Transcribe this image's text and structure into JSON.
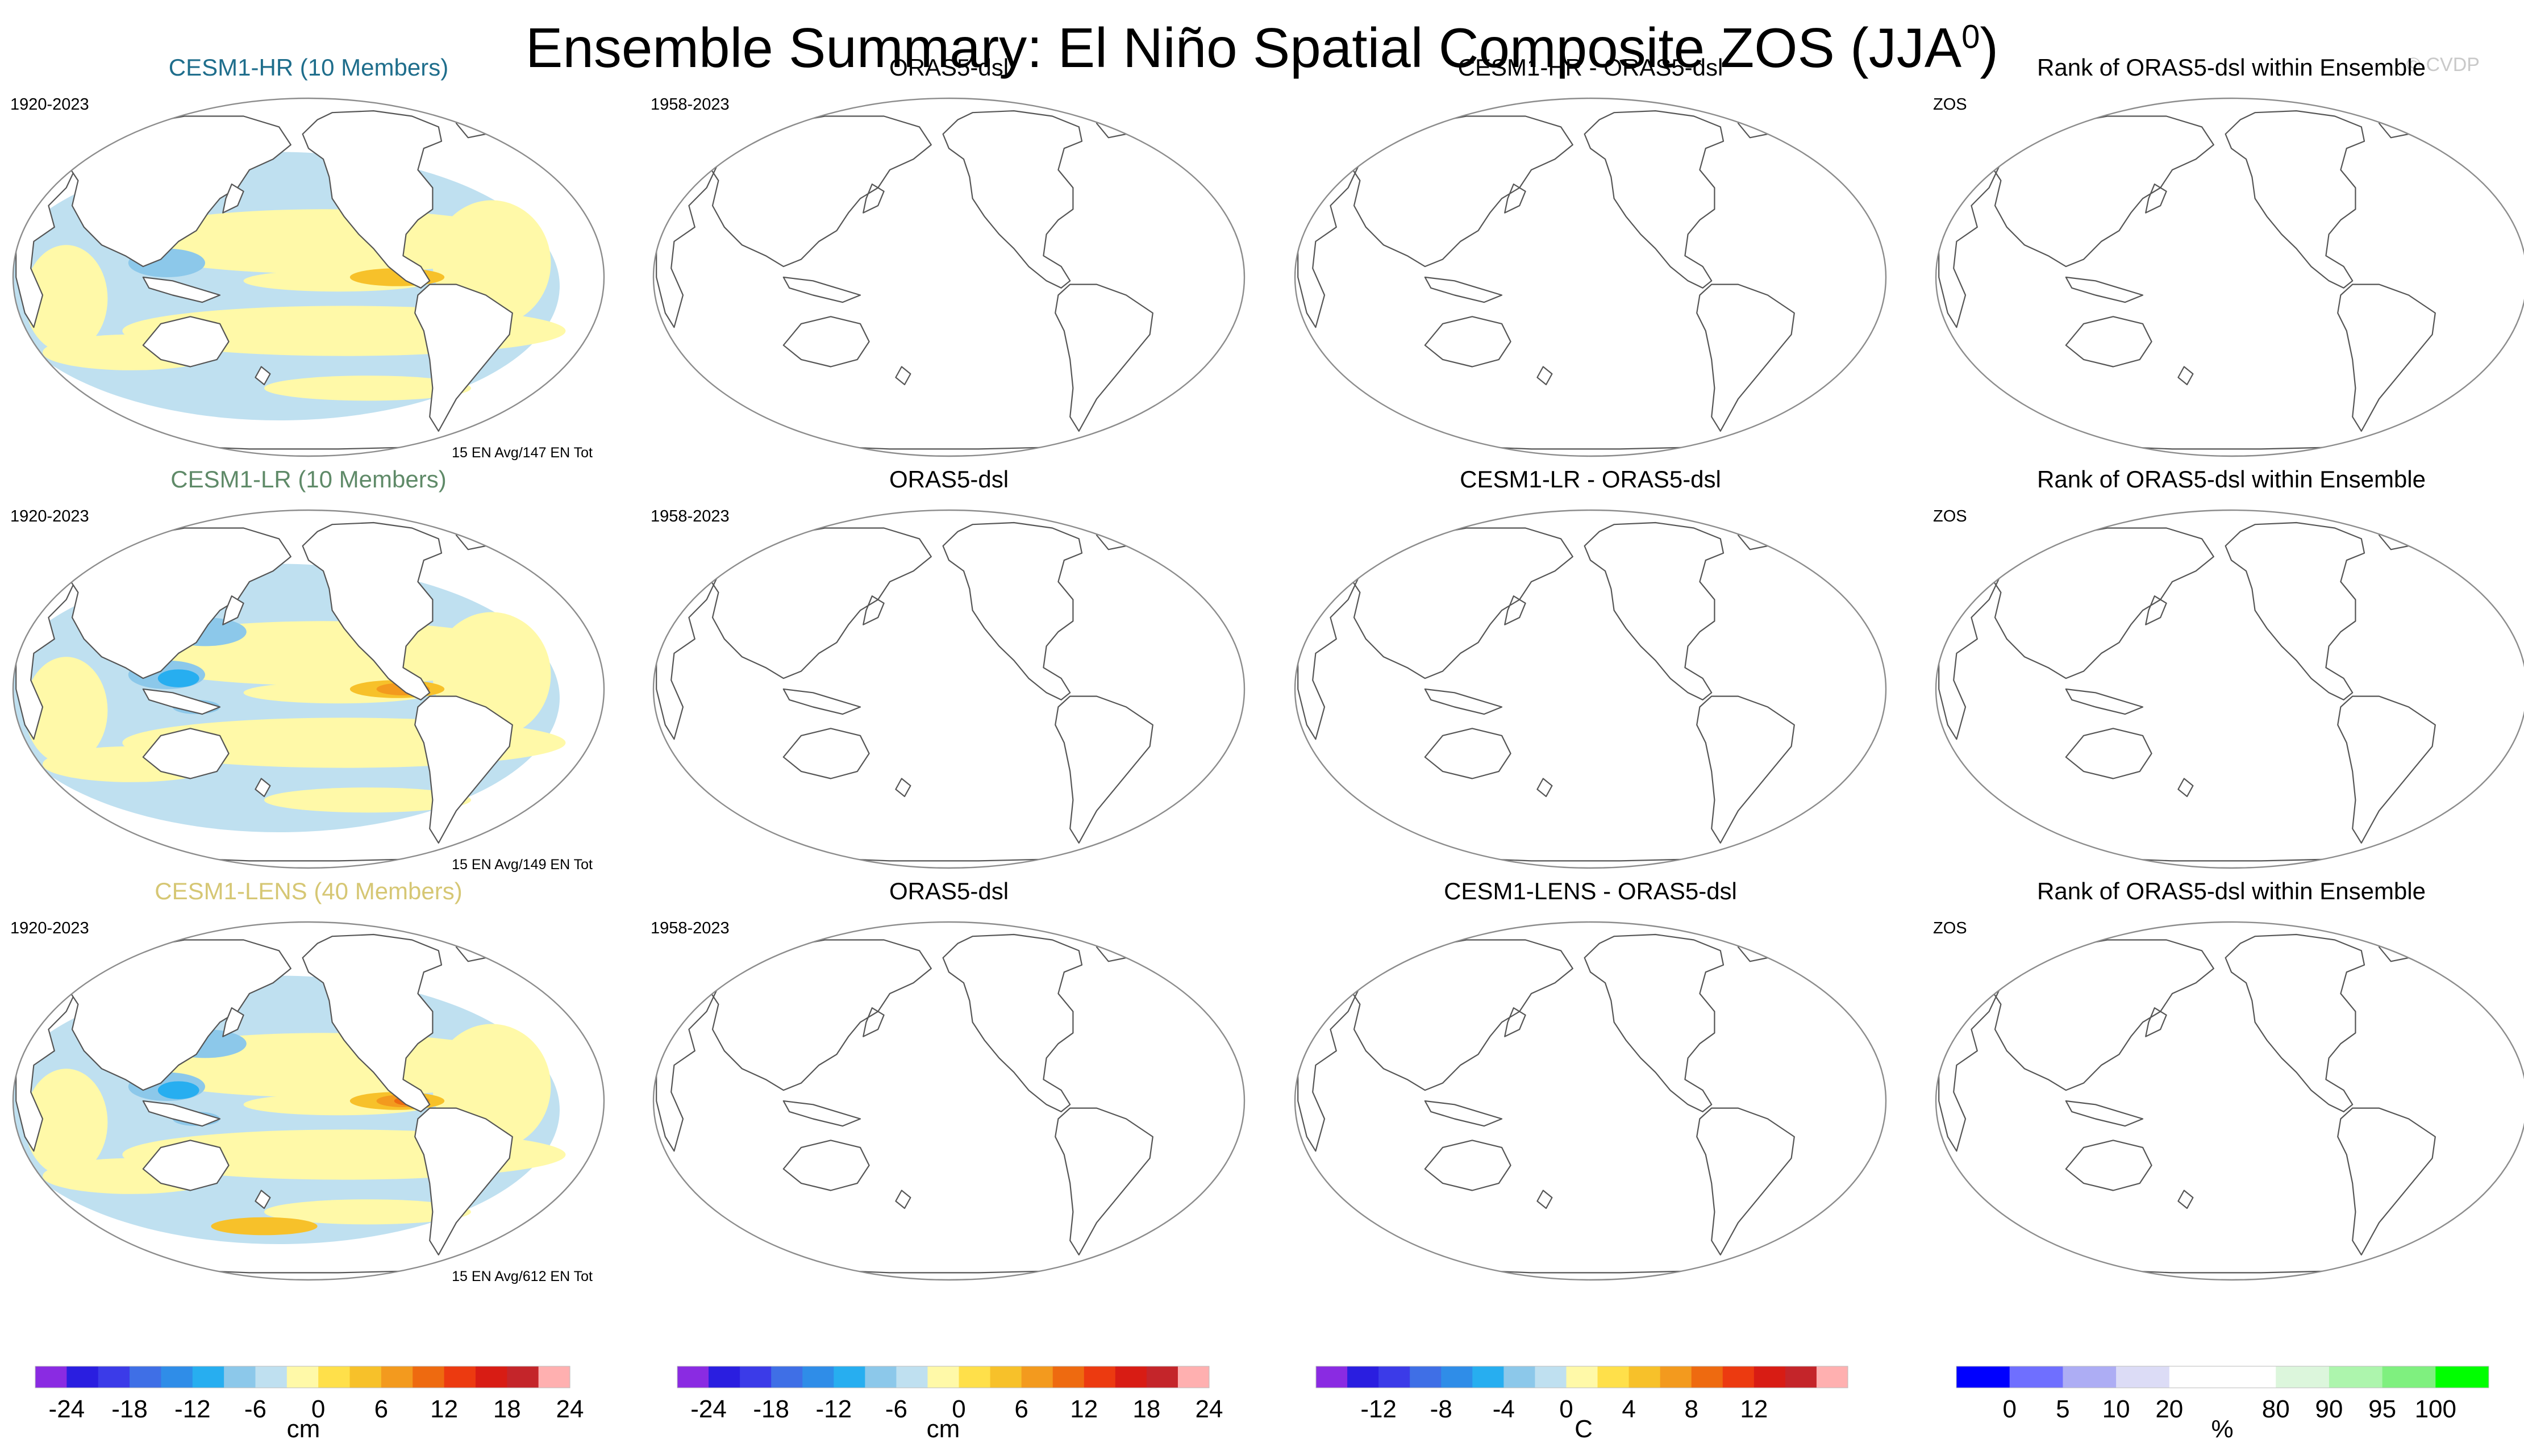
{
  "figure": {
    "title_main": "Ensemble Summary: El Niño Spatial Composite ZOS (JJA",
    "title_sup": "0",
    "title_close": ")",
    "watermark": "© CVDP"
  },
  "rows": [
    {
      "model_title": "CESM1-HR (10 Members)",
      "model_title_color": "#1f6e8c",
      "model_period": "1920-2023",
      "model_count": "15 EN Avg/147 EN Tot",
      "obs_title": "ORAS5-dsl",
      "obs_period": "1958-2023",
      "diff_title": "CESM1-HR - ORAS5-dsl",
      "rank_title": "Rank of ORAS5-dsl within Ensemble",
      "rank_var": "ZOS",
      "pattern_strength": 0.55
    },
    {
      "model_title": "CESM1-LR (10 Members)",
      "model_title_color": "#5f8a68",
      "model_period": "1920-2023",
      "model_count": "15 EN Avg/149 EN Tot",
      "obs_title": "ORAS5-dsl",
      "obs_period": "1958-2023",
      "diff_title": "CESM1-LR - ORAS5-dsl",
      "rank_title": "Rank of ORAS5-dsl within Ensemble",
      "rank_var": "ZOS",
      "pattern_strength": 0.8
    },
    {
      "model_title": "CESM1-LENS (40 Members)",
      "model_title_color": "#d6c774",
      "model_period": "1920-2023",
      "model_count": "15 EN Avg/612 EN Tot",
      "obs_title": "ORAS5-dsl",
      "obs_period": "1958-2023",
      "diff_title": "CESM1-LENS - ORAS5-dsl",
      "rank_title": "Rank of ORAS5-dsl within Ensemble",
      "rank_var": "ZOS",
      "pattern_strength": 1.0
    }
  ],
  "colorbars": [
    {
      "id": "model",
      "unit": "cm",
      "colors": [
        "#8a2be2",
        "#2a1ee0",
        "#3b3be8",
        "#3f6fe6",
        "#2f8de8",
        "#27aef0",
        "#8cc8ea",
        "#bfe0f0",
        "#fff9a8",
        "#ffe04a",
        "#f7c12a",
        "#f39a1e",
        "#ee6a10",
        "#ec3a10",
        "#d81c14",
        "#c4252a",
        "#ffb0b0"
      ],
      "tick_labels": [
        "-24",
        "-18",
        "-12",
        "-6",
        "0",
        "6",
        "12",
        "18",
        "24"
      ]
    },
    {
      "id": "obs",
      "unit": "cm",
      "colors": [
        "#8a2be2",
        "#2a1ee0",
        "#3b3be8",
        "#3f6fe6",
        "#2f8de8",
        "#27aef0",
        "#8cc8ea",
        "#bfe0f0",
        "#fff9a8",
        "#ffe04a",
        "#f7c12a",
        "#f39a1e",
        "#ee6a10",
        "#ec3a10",
        "#d81c14",
        "#c4252a",
        "#ffb0b0"
      ],
      "tick_labels": [
        "-24",
        "-18",
        "-12",
        "-6",
        "0",
        "6",
        "12",
        "18",
        "24"
      ]
    },
    {
      "id": "diff",
      "unit": "C",
      "colors": [
        "#8a2be2",
        "#2a1ee0",
        "#3b3be8",
        "#3f6fe6",
        "#2f8de8",
        "#27aef0",
        "#8cc8ea",
        "#bfe0f0",
        "#fff9a8",
        "#ffe04a",
        "#f7c12a",
        "#f39a1e",
        "#ee6a10",
        "#ec3a10",
        "#d81c14",
        "#c4252a",
        "#ffb0b0"
      ],
      "tick_labels": [
        "-12",
        "-8",
        "-4",
        "0",
        "4",
        "8",
        "12"
      ]
    },
    {
      "id": "rank",
      "unit": "%",
      "colors": [
        "#0000ff",
        "#6f6fff",
        "#adadf4",
        "#dcdcf6",
        "#ffffff",
        "#ffffff",
        "#dcf6dc",
        "#adf5ad",
        "#7ff07f",
        "#00ff00"
      ],
      "tick_labels": [
        "0",
        "5",
        "10",
        "20",
        "80",
        "90",
        "95",
        "100"
      ]
    }
  ]
}
